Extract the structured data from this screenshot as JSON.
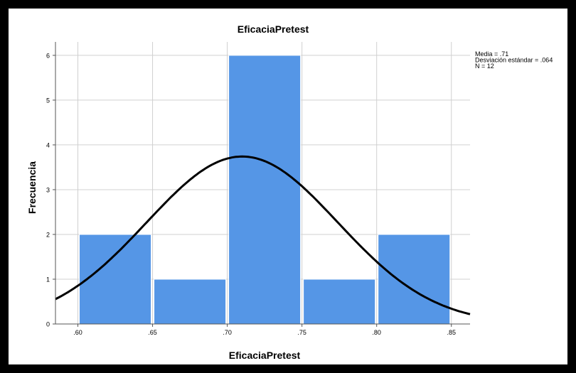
{
  "chart_data": {
    "type": "bar",
    "title": "EficaciaPretest",
    "xlabel": "EficaciaPretest",
    "ylabel": "Frecuencia",
    "bins": [
      {
        "from": 0.6,
        "to": 0.65,
        "value": 2
      },
      {
        "from": 0.65,
        "to": 0.7,
        "value": 1
      },
      {
        "from": 0.7,
        "to": 0.75,
        "value": 6
      },
      {
        "from": 0.75,
        "to": 0.8,
        "value": 1
      },
      {
        "from": 0.8,
        "to": 0.85,
        "value": 2
      }
    ],
    "x_ticks": [
      {
        "value": 0.6,
        "label": ".60"
      },
      {
        "value": 0.65,
        "label": ".65"
      },
      {
        "value": 0.7,
        "label": ".70"
      },
      {
        "value": 0.75,
        "label": ".75"
      },
      {
        "value": 0.8,
        "label": ".80"
      },
      {
        "value": 0.85,
        "label": ".85"
      }
    ],
    "y_ticks": [
      0,
      1,
      2,
      3,
      4,
      5,
      6
    ],
    "xlim": [
      0.585,
      0.8625
    ],
    "ylim": [
      0,
      6.3
    ],
    "grid": true,
    "normal_curve": {
      "mean": 0.71,
      "sd": 0.064,
      "n": 12,
      "bin_width": 0.05
    },
    "stats": [
      "Media = .71",
      "Desviación estándar = .064",
      "N = 12"
    ],
    "colors": {
      "bar": "#5596E6",
      "curve": "#000000",
      "grid": "#D0D0D0"
    }
  }
}
